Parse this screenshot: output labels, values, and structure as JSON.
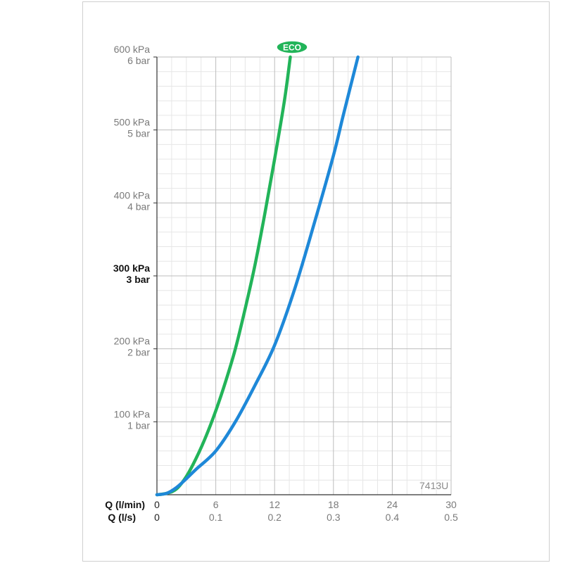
{
  "chart_data": {
    "type": "line",
    "xlabel": "Q (l/min)",
    "xlabel_secondary": "Q (l/s)",
    "x_ticks_lmin": [
      "0",
      "6",
      "12",
      "18",
      "24",
      "30"
    ],
    "x_ticks_ls": [
      "0",
      "0.1",
      "0.2",
      "0.3",
      "0.4",
      "0.5"
    ],
    "xlim": [
      0,
      30
    ],
    "ylim": [
      0,
      600
    ],
    "y_ticks": [
      {
        "value": 100,
        "kpa": "100 kPa",
        "bar": "1 bar",
        "bold": false
      },
      {
        "value": 200,
        "kpa": "200 kPa",
        "bar": "2 bar",
        "bold": false
      },
      {
        "value": 300,
        "kpa": "300 kPa",
        "bar": "3 bar",
        "bold": true
      },
      {
        "value": 400,
        "kpa": "400 kPa",
        "bar": "4 bar",
        "bold": false
      },
      {
        "value": 500,
        "kpa": "500 kPa",
        "bar": "5 bar",
        "bold": false
      },
      {
        "value": 600,
        "kpa": "600 kPa",
        "bar": "6 bar",
        "bold": false
      }
    ],
    "grid": true,
    "series": [
      {
        "color": "#22b459",
        "badge": "ECO",
        "points": [
          [
            0,
            0
          ],
          [
            1,
            2
          ],
          [
            2,
            8
          ],
          [
            3,
            25
          ],
          [
            4,
            50
          ],
          [
            5,
            80
          ],
          [
            6,
            115
          ],
          [
            7,
            155
          ],
          [
            8,
            200
          ],
          [
            9,
            255
          ],
          [
            10,
            315
          ],
          [
            11,
            385
          ],
          [
            12,
            460
          ],
          [
            13,
            540
          ],
          [
            13.6,
            600
          ]
        ]
      },
      {
        "color": "#1e88d8",
        "points": [
          [
            0,
            0
          ],
          [
            1,
            2
          ],
          [
            2,
            10
          ],
          [
            3,
            22
          ],
          [
            4,
            35
          ],
          [
            6,
            60
          ],
          [
            8,
            100
          ],
          [
            10,
            150
          ],
          [
            12,
            205
          ],
          [
            14,
            280
          ],
          [
            16,
            370
          ],
          [
            18,
            465
          ],
          [
            19,
            520
          ],
          [
            20.5,
            600
          ]
        ]
      }
    ],
    "code_label": "7413U"
  }
}
